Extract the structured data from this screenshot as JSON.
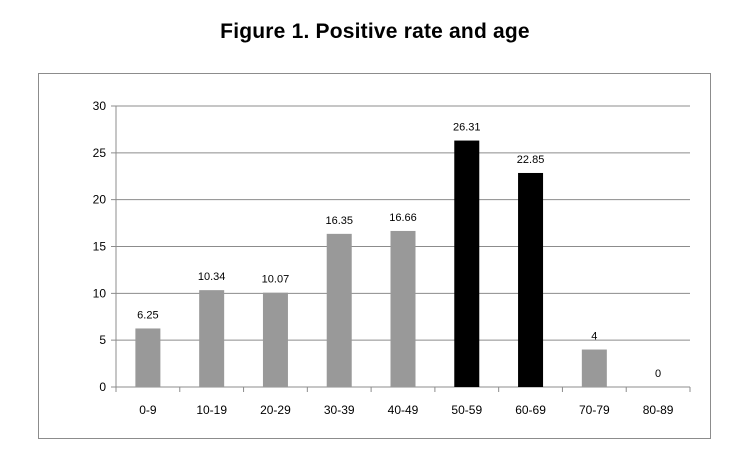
{
  "chart_data": {
    "type": "bar",
    "title": "Figure 1. Positive rate and age",
    "xlabel": "",
    "ylabel": "",
    "categories": [
      "0-9",
      "10-19",
      "20-29",
      "30-39",
      "40-49",
      "50-59",
      "60-69",
      "70-79",
      "80-89"
    ],
    "values": [
      6.25,
      10.34,
      10.07,
      16.35,
      16.66,
      26.31,
      22.85,
      4,
      0
    ],
    "data_labels": [
      "6.25",
      "10.34",
      "10.07",
      "16.35",
      "16.66",
      "26.31",
      "22.85",
      "4",
      "0"
    ],
    "ylim": [
      0,
      30
    ],
    "yticks": [
      "0",
      "5",
      "10",
      "15",
      "20",
      "25",
      "30"
    ],
    "grid": true,
    "bar_colors": [
      "#999999",
      "#999999",
      "#999999",
      "#999999",
      "#999999",
      "#000000",
      "#000000",
      "#999999",
      "#999999"
    ]
  }
}
